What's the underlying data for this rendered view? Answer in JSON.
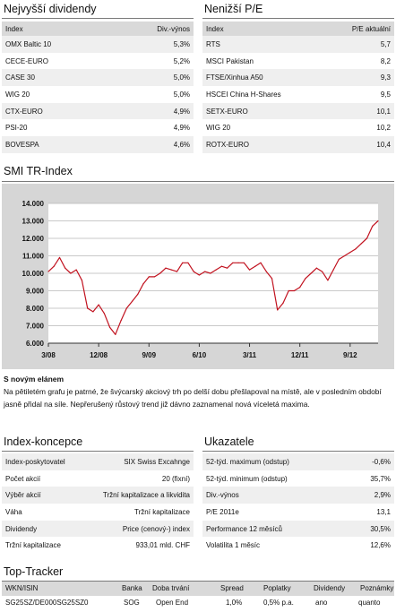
{
  "top_dividends": {
    "title": "Nejvyšší dividendy",
    "col_index": "Index",
    "col_value": "Div.-výnos",
    "rows": [
      {
        "name": "OMX Baltic 10",
        "value": "5,3%"
      },
      {
        "name": "CECE-EURO",
        "value": "5,2%"
      },
      {
        "name": "CASE 30",
        "value": "5,0%"
      },
      {
        "name": "WIG 20",
        "value": "5,0%"
      },
      {
        "name": "CTX-EURO",
        "value": "4,9%"
      },
      {
        "name": "PSI-20",
        "value": "4,9%"
      },
      {
        "name": "BOVESPA",
        "value": "4,6%"
      }
    ]
  },
  "lowest_pe": {
    "title": "Nenižší P/E",
    "col_index": "Index",
    "col_value": "P/E aktuální",
    "rows": [
      {
        "name": "RTS",
        "value": "5,7"
      },
      {
        "name": "MSCI Pakistan",
        "value": "8,2"
      },
      {
        "name": "FTSE/Xinhua A50",
        "value": "9,3"
      },
      {
        "name": "HSCEI China H-Shares",
        "value": "9,5"
      },
      {
        "name": "SETX-EURO",
        "value": "10,1"
      },
      {
        "name": "WIG 20",
        "value": "10,2"
      },
      {
        "name": "ROTX-EURO",
        "value": "10,4"
      }
    ]
  },
  "chart_section": {
    "title": "SMI TR-Index"
  },
  "chart_data": {
    "type": "line",
    "title": "",
    "xlabel": "",
    "ylabel": "",
    "x_tick_labels": [
      "3/08",
      "12/08",
      "9/09",
      "6/10",
      "3/11",
      "12/11",
      "9/12"
    ],
    "y_tick_labels": [
      "6.000",
      "7.000",
      "8.000",
      "9.000",
      "10.000",
      "11.000",
      "12.000",
      "13.000",
      "14.000"
    ],
    "ylim": [
      6000,
      14000
    ],
    "x_range": [
      "2008-03",
      "2013-02"
    ],
    "grid": true,
    "series": [
      {
        "color": "#c1121f",
        "points": [
          [
            "2008-03",
            10100
          ],
          [
            "2008-04",
            10400
          ],
          [
            "2008-05",
            10900
          ],
          [
            "2008-06",
            10300
          ],
          [
            "2008-07",
            10000
          ],
          [
            "2008-08",
            10200
          ],
          [
            "2008-09",
            9600
          ],
          [
            "2008-10",
            8000
          ],
          [
            "2008-11",
            7800
          ],
          [
            "2008-12",
            8200
          ],
          [
            "2009-01",
            7700
          ],
          [
            "2009-02",
            6900
          ],
          [
            "2009-03",
            6500
          ],
          [
            "2009-04",
            7300
          ],
          [
            "2009-05",
            8000
          ],
          [
            "2009-06",
            8400
          ],
          [
            "2009-07",
            8800
          ],
          [
            "2009-08",
            9400
          ],
          [
            "2009-09",
            9800
          ],
          [
            "2009-10",
            9800
          ],
          [
            "2009-11",
            10000
          ],
          [
            "2009-12",
            10300
          ],
          [
            "2010-01",
            10200
          ],
          [
            "2010-02",
            10100
          ],
          [
            "2010-03",
            10600
          ],
          [
            "2010-04",
            10600
          ],
          [
            "2010-05",
            10100
          ],
          [
            "2010-06",
            9900
          ],
          [
            "2010-07",
            10100
          ],
          [
            "2010-08",
            10000
          ],
          [
            "2010-09",
            10200
          ],
          [
            "2010-10",
            10400
          ],
          [
            "2010-11",
            10300
          ],
          [
            "2010-12",
            10600
          ],
          [
            "2011-01",
            10600
          ],
          [
            "2011-02",
            10600
          ],
          [
            "2011-03",
            10200
          ],
          [
            "2011-04",
            10400
          ],
          [
            "2011-05",
            10600
          ],
          [
            "2011-06",
            10100
          ],
          [
            "2011-07",
            9700
          ],
          [
            "2011-08",
            7900
          ],
          [
            "2011-09",
            8300
          ],
          [
            "2011-10",
            9000
          ],
          [
            "2011-11",
            9000
          ],
          [
            "2011-12",
            9200
          ],
          [
            "2012-01",
            9700
          ],
          [
            "2012-02",
            10000
          ],
          [
            "2012-03",
            10300
          ],
          [
            "2012-04",
            10100
          ],
          [
            "2012-05",
            9600
          ],
          [
            "2012-06",
            10200
          ],
          [
            "2012-07",
            10800
          ],
          [
            "2012-08",
            11000
          ],
          [
            "2012-09",
            11200
          ],
          [
            "2012-10",
            11400
          ],
          [
            "2012-11",
            11700
          ],
          [
            "2012-12",
            12000
          ],
          [
            "2013-01",
            12700
          ],
          [
            "2013-02",
            13000
          ]
        ]
      }
    ]
  },
  "new_eye": {
    "title": "S novým elánem",
    "text": "Na pětiletém grafu je patrné, že švýcarský akciový trh po delší dobu přešlapoval na místě, ale v posledním období jasně přidal na síle. Nepřerušený růstový trend již dávno zaznamenal nová víceletá maxima."
  },
  "index_concept": {
    "title": "Index-koncepce",
    "rows": [
      {
        "label": "Index-poskytovatel",
        "value": "SIX Swiss Excahnge"
      },
      {
        "label": "Počet akcií",
        "value": "20 (fixní)"
      },
      {
        "label": "Výběr akcií",
        "value": "Tržní kapitalizace a likvidita"
      },
      {
        "label": "Váha",
        "value": "Tržní kapitalizace"
      },
      {
        "label": "Dividendy",
        "value": "Price (cenový-) index"
      },
      {
        "label": "Tržní kapitalizace",
        "value": "933,01 mld. CHF"
      }
    ]
  },
  "indicators": {
    "title": "Ukazatele",
    "rows": [
      {
        "label": "52-týd. maximum (odstup)",
        "value": "-0,6%"
      },
      {
        "label": "52-týd. minimum (odstup)",
        "value": "35,7%"
      },
      {
        "label": "Div.-výnos",
        "value": "2,9%"
      },
      {
        "label": "P/E 2011e",
        "value": "13,1"
      },
      {
        "label": "Performance 12 měsíců",
        "value": "30,5%"
      },
      {
        "label": "Volatilita 1 měsíc",
        "value": "12,6%"
      }
    ]
  },
  "top_tracker": {
    "title": "Top-Tracker",
    "headers": [
      "WKN/ISIN",
      "Banka",
      "Doba trvání",
      "Spread",
      "Poplatky",
      "Dividendy",
      "Poznámky"
    ],
    "row": [
      "SG25SZ/DE000SG25SZ0",
      "SOG",
      "Open End",
      "1,0%",
      "0,5% p.a.",
      "ano",
      "quanto"
    ]
  }
}
